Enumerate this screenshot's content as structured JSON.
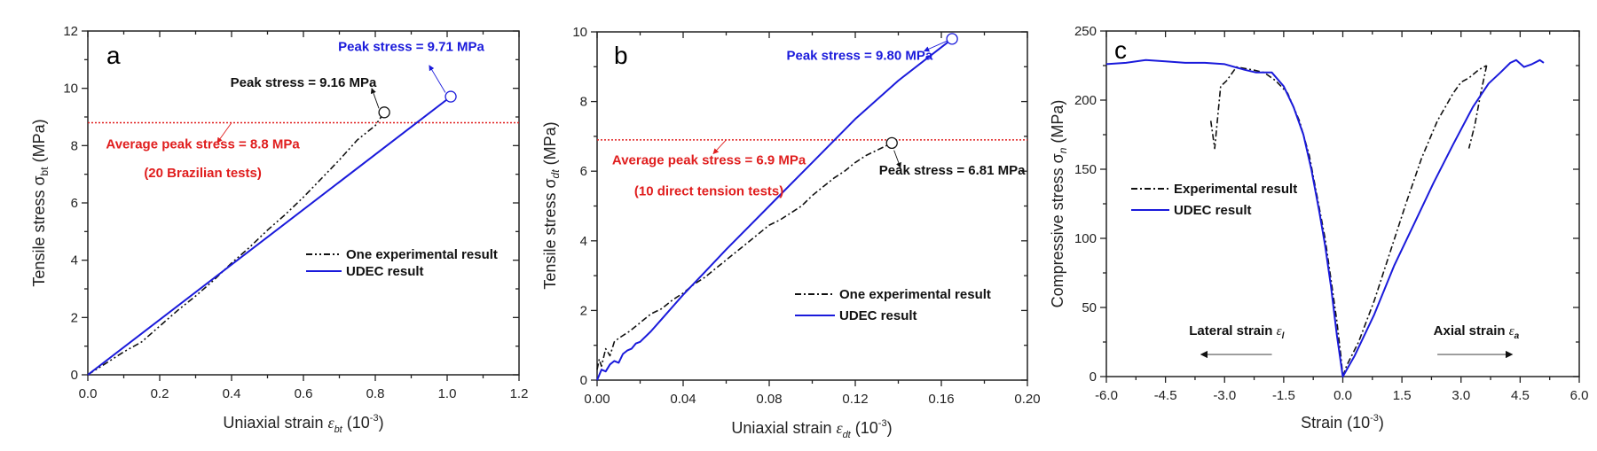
{
  "colors": {
    "udec": "#1a1adb",
    "experimental": "#111111",
    "average": "#e01e1e",
    "axis": "#222222"
  },
  "chart_data": [
    {
      "id": "a",
      "type": "line",
      "panel_label": "a",
      "xlabel": "Uniaxial strain ε_bt (10^-3)",
      "xlabel_parts": {
        "main": "Uniaxial strain ",
        "sym": "ε",
        "sub": "bt",
        "unit_pre": " (10",
        "sup": "-3",
        "unit_post": ")"
      },
      "ylabel": "Tensile stress σbt (MPa)",
      "ylabel_parts": {
        "main": "Tensile stress σ",
        "sub": "bt",
        "post": " (MPa)"
      },
      "xlim": [
        0,
        1.2
      ],
      "ylim": [
        0,
        12
      ],
      "xticks": [
        0.0,
        0.2,
        0.4,
        0.6,
        0.8,
        1.0,
        1.2
      ],
      "xtick_labels": [
        "0.0",
        "0.2",
        "0.4",
        "0.6",
        "0.8",
        "1.0",
        "1.2"
      ],
      "xminor": 0.1,
      "yticks": [
        0,
        2,
        4,
        6,
        8,
        10,
        12
      ],
      "ytick_labels": [
        "0",
        "2",
        "4",
        "6",
        "8",
        "10",
        "12"
      ],
      "yminor": 1,
      "grid": false,
      "legend_position": "center-right",
      "series": [
        {
          "name": "One experimental result",
          "style": "dash-dot-dot",
          "color_key": "experimental",
          "x": [
            0,
            0.05,
            0.1,
            0.15,
            0.2,
            0.25,
            0.3,
            0.35,
            0.4,
            0.45,
            0.5,
            0.55,
            0.6,
            0.65,
            0.7,
            0.75,
            0.8,
            0.825
          ],
          "y": [
            0,
            0.4,
            0.8,
            1.15,
            1.7,
            2.25,
            2.75,
            3.3,
            3.9,
            4.45,
            5.05,
            5.6,
            6.2,
            6.85,
            7.5,
            8.2,
            8.7,
            9.16
          ]
        },
        {
          "name": "UDEC result",
          "style": "solid",
          "color_key": "udec",
          "x": [
            0,
            1.01
          ],
          "y": [
            0,
            9.71
          ]
        }
      ],
      "reference_line": {
        "y": 8.8,
        "label": "Average peak stress = 8.8 MPa",
        "label2": "(20 Brazilian tests)"
      },
      "peaks": [
        {
          "x": 0.825,
          "y": 9.16,
          "label": "Peak stress = 9.16 MPa",
          "color_key": "experimental"
        },
        {
          "x": 1.01,
          "y": 9.71,
          "label": "Peak stress = 9.71 MPa",
          "color_key": "udec"
        }
      ],
      "annotations": [
        {
          "text_key": "peaks.0.label",
          "tx": 0.6,
          "ty": 10.05,
          "anchor": "middle",
          "arrow_from": [
            0.81,
            9.3
          ],
          "arrow_to": [
            0.79,
            10.0
          ]
        },
        {
          "text_key": "peaks.1.label",
          "tx": 0.9,
          "ty": 11.3,
          "anchor": "middle",
          "arrow_from": [
            0.995,
            9.85
          ],
          "arrow_to": [
            0.95,
            10.8
          ]
        },
        {
          "text_key": "reference_line.label",
          "tx": 0.32,
          "ty": 7.9,
          "anchor": "middle",
          "arrow_from": [
            0.4,
            8.8
          ],
          "arrow_to": [
            0.36,
            8.1
          ]
        },
        {
          "text_key": "reference_line.label2",
          "tx": 0.32,
          "ty": 6.9,
          "anchor": "middle"
        }
      ]
    },
    {
      "id": "b",
      "type": "line",
      "panel_label": "b",
      "xlabel": "Uniaxial strain ε_dt (10^-3)",
      "xlabel_parts": {
        "main": "Uniaxial strain ",
        "sym": "ε",
        "sub": "dt",
        "unit_pre": " (10",
        "sup": "-3",
        "unit_post": ")"
      },
      "ylabel": "Tensile stress σdt (MPa)",
      "ylabel_parts": {
        "main": "Tensile stress σ",
        "sub": "dt",
        "post": " (MPa)"
      },
      "xlim": [
        0,
        0.2
      ],
      "ylim": [
        0,
        10
      ],
      "xticks": [
        0.0,
        0.04,
        0.08,
        0.12,
        0.16,
        0.2
      ],
      "xtick_labels": [
        "0.00",
        "0.04",
        "0.08",
        "0.12",
        "0.16",
        "0.20"
      ],
      "xminor": 0.02,
      "yticks": [
        0,
        2,
        4,
        6,
        8,
        10
      ],
      "ytick_labels": [
        "0",
        "2",
        "4",
        "6",
        "8",
        "10"
      ],
      "yminor": 1,
      "grid": false,
      "legend_position": "bottom-right",
      "series": [
        {
          "name": "One experimental result",
          "style": "dash-dot",
          "color_key": "experimental",
          "x": [
            0,
            0.001,
            0.002,
            0.004,
            0.006,
            0.008,
            0.01,
            0.015,
            0.02,
            0.025,
            0.03,
            0.035,
            0.04,
            0.045,
            0.05,
            0.055,
            0.06,
            0.065,
            0.07,
            0.075,
            0.08,
            0.085,
            0.09,
            0.095,
            0.1,
            0.105,
            0.11,
            0.115,
            0.12,
            0.125,
            0.13,
            0.137
          ],
          "y": [
            0.3,
            0.6,
            0.4,
            0.9,
            0.7,
            1.1,
            1.2,
            1.4,
            1.65,
            1.9,
            2.05,
            2.3,
            2.5,
            2.75,
            2.95,
            3.2,
            3.45,
            3.7,
            3.95,
            4.2,
            4.45,
            4.6,
            4.8,
            5.0,
            5.3,
            5.55,
            5.8,
            6.0,
            6.25,
            6.45,
            6.6,
            6.81
          ]
        },
        {
          "name": "UDEC result",
          "style": "solid",
          "color_key": "udec",
          "x": [
            0,
            0.002,
            0.004,
            0.006,
            0.008,
            0.01,
            0.012,
            0.014,
            0.016,
            0.018,
            0.02,
            0.025,
            0.03,
            0.04,
            0.05,
            0.06,
            0.08,
            0.1,
            0.12,
            0.14,
            0.165
          ],
          "y": [
            0,
            0.3,
            0.25,
            0.45,
            0.55,
            0.5,
            0.75,
            0.85,
            0.9,
            1.05,
            1.1,
            1.4,
            1.75,
            2.45,
            3.1,
            3.75,
            5.0,
            6.25,
            7.5,
            8.6,
            9.8
          ]
        }
      ],
      "reference_line": {
        "y": 6.9,
        "label": "Average peak stress = 6.9 MPa",
        "label2": "(10 direct tension tests)"
      },
      "peaks": [
        {
          "x": 0.137,
          "y": 6.81,
          "label": "Peak stress = 6.81 MPa",
          "color_key": "experimental"
        },
        {
          "x": 0.165,
          "y": 9.8,
          "label": "Peak stress = 9.80 MPa",
          "color_key": "udec"
        }
      ],
      "annotations": [
        {
          "text_key": "peaks.0.label",
          "tx": 0.165,
          "ty": 5.9,
          "anchor": "middle",
          "arrow_from": [
            0.138,
            6.6
          ],
          "arrow_to": [
            0.141,
            6.1
          ]
        },
        {
          "text_key": "peaks.1.label",
          "tx": 0.122,
          "ty": 9.2,
          "anchor": "middle",
          "arrow_from": [
            0.163,
            9.75
          ],
          "arrow_to": [
            0.152,
            9.45
          ]
        },
        {
          "text_key": "reference_line.label",
          "tx": 0.052,
          "ty": 6.2,
          "anchor": "middle",
          "arrow_from": [
            0.06,
            6.9
          ],
          "arrow_to": [
            0.054,
            6.5
          ]
        },
        {
          "text_key": "reference_line.label2",
          "tx": 0.052,
          "ty": 5.3,
          "anchor": "middle"
        }
      ]
    },
    {
      "id": "c",
      "type": "line",
      "panel_label": "c",
      "xlabel": "Strain (10^-3)",
      "xlabel_parts": {
        "main": "Strain",
        "sym": "",
        "sub": "",
        "unit_pre": " (10",
        "sup": "-3",
        "unit_post": ")"
      },
      "ylabel": "Compressive stress σn (MPa)",
      "ylabel_parts": {
        "main": "Compressive stress σ",
        "sub": "n",
        "post": " (MPa)"
      },
      "xlim": [
        -6,
        6
      ],
      "ylim": [
        0,
        250
      ],
      "xticks": [
        -6,
        -4.5,
        -3,
        -1.5,
        0,
        1.5,
        3,
        4.5,
        6
      ],
      "xtick_labels": [
        "-6.0",
        "-4.5",
        "-3.0",
        "-1.5",
        "0.0",
        "1.5",
        "3.0",
        "4.5",
        "6.0"
      ],
      "xminor": 0.75,
      "yticks": [
        0,
        50,
        100,
        150,
        200,
        250
      ],
      "ytick_labels": [
        "0",
        "50",
        "100",
        "150",
        "200",
        "250"
      ],
      "yminor": 25,
      "grid": false,
      "legend_position": "center-left",
      "series": [
        {
          "name": "Experimental result",
          "style": "dash-dot",
          "color_key": "experimental",
          "x": [
            -3.35,
            -3.25,
            -3.1,
            -2.95,
            -2.7,
            -2.3,
            -2.0,
            -1.7,
            -1.4,
            -1.1,
            -0.85,
            -0.65,
            -0.45,
            -0.3,
            -0.15,
            -0.05,
            0,
            0.1,
            0.4,
            0.8,
            1.2,
            1.6,
            2.0,
            2.4,
            2.8,
            3.0,
            3.2,
            3.45,
            3.65
          ],
          "y": [
            185,
            165,
            210,
            214,
            224,
            222,
            220,
            214,
            205,
            185,
            160,
            130,
            100,
            70,
            40,
            15,
            0,
            8,
            25,
            55,
            90,
            125,
            158,
            185,
            205,
            213,
            216,
            222,
            225
          ],
          "branch2": {
            "x": [
              3.65,
              3.5,
              3.35,
              3.2
            ],
            "y": [
              225,
              205,
              182,
              165
            ]
          }
        },
        {
          "name": "UDEC result",
          "style": "solid",
          "color_key": "udec",
          "x": [
            -6,
            -5.5,
            -5.0,
            -4.5,
            -4.0,
            -3.5,
            -3.0,
            -2.5,
            -2.2,
            -2.0,
            -1.8,
            -1.5,
            -1.25,
            -1.0,
            -0.8,
            -0.6,
            -0.45,
            -0.3,
            -0.15,
            0,
            0.3,
            0.8,
            1.3,
            1.8,
            2.3,
            2.8,
            3.3,
            3.7,
            4.0,
            4.25,
            4.4,
            4.6,
            4.8,
            5.0,
            5.1
          ],
          "y": [
            226,
            227,
            229,
            228,
            227,
            227,
            226,
            222,
            220,
            220,
            220,
            210,
            195,
            175,
            150,
            120,
            95,
            65,
            30,
            0,
            15,
            45,
            80,
            110,
            140,
            168,
            195,
            212,
            220,
            227,
            229,
            224,
            226,
            229,
            227
          ]
        }
      ],
      "annotations_text": [
        {
          "text": "Lateral strain",
          "sym": "ε",
          "sub": "l",
          "tx": -3.9,
          "ty": 30,
          "arrow_from": [
            -1.8,
            16
          ],
          "arrow_to": [
            -3.6,
            16
          ]
        },
        {
          "text": "Axial strain",
          "sym": "ε",
          "sub": "a",
          "tx": 2.3,
          "ty": 30,
          "arrow_from": [
            2.4,
            16
          ],
          "arrow_to": [
            4.3,
            16
          ]
        }
      ]
    }
  ]
}
